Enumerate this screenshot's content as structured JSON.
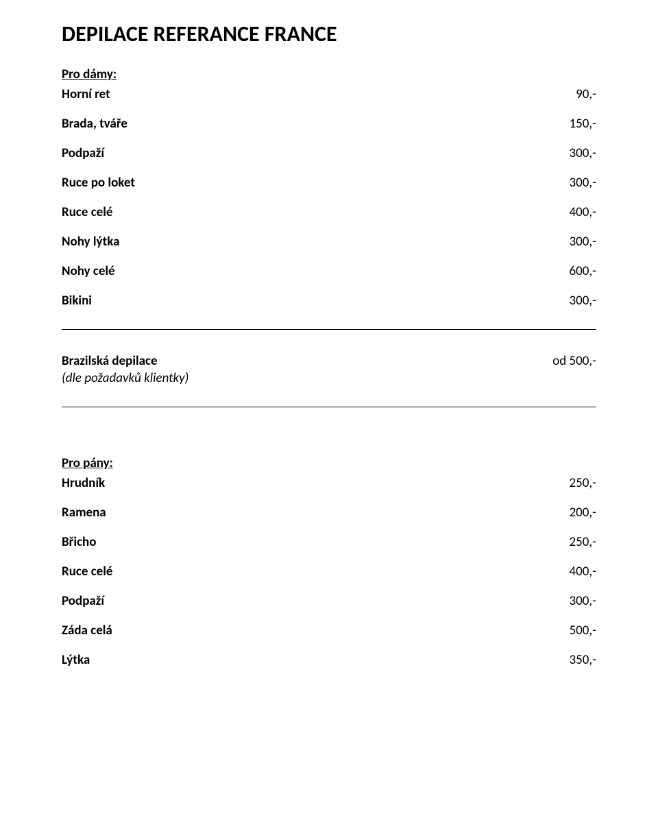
{
  "title": "DEPILACE REFERANCE FRANCE",
  "sections": {
    "damy": {
      "heading": "Pro dámy:",
      "items": [
        {
          "label": "Horní ret",
          "value": "90,-"
        },
        {
          "label": "Brada, tváře",
          "value": "150,-"
        },
        {
          "label": "Podpaží",
          "value": "300,-"
        },
        {
          "label": "Ruce po loket",
          "value": "300,-"
        },
        {
          "label": "Ruce celé",
          "value": "400,-"
        },
        {
          "label": "Nohy lýtka",
          "value": "300,-"
        },
        {
          "label": "Nohy celé",
          "value": "600,-"
        },
        {
          "label": "Bikini",
          "value": "300,-"
        }
      ]
    },
    "brazil": {
      "label": "Brazilská depilace",
      "value": "od 500,-",
      "note": "(dle požadavků klientky)"
    },
    "pany": {
      "heading": "Pro pány:",
      "items": [
        {
          "label": "Hrudník",
          "value": "250,-"
        },
        {
          "label": "Ramena",
          "value": "200,-"
        },
        {
          "label": "Břicho",
          "value": "250,-"
        },
        {
          "label": "Ruce celé",
          "value": "400,-"
        },
        {
          "label": "Podpaží",
          "value": "300,-"
        },
        {
          "label": "Záda celá",
          "value": "500,-"
        },
        {
          "label": "Lýtka",
          "value": "350,-"
        }
      ]
    }
  },
  "style": {
    "text_color": "#000000",
    "background_color": "#ffffff",
    "divider_color": "#000000",
    "title_fontsize": 32,
    "body_fontsize": 19
  }
}
